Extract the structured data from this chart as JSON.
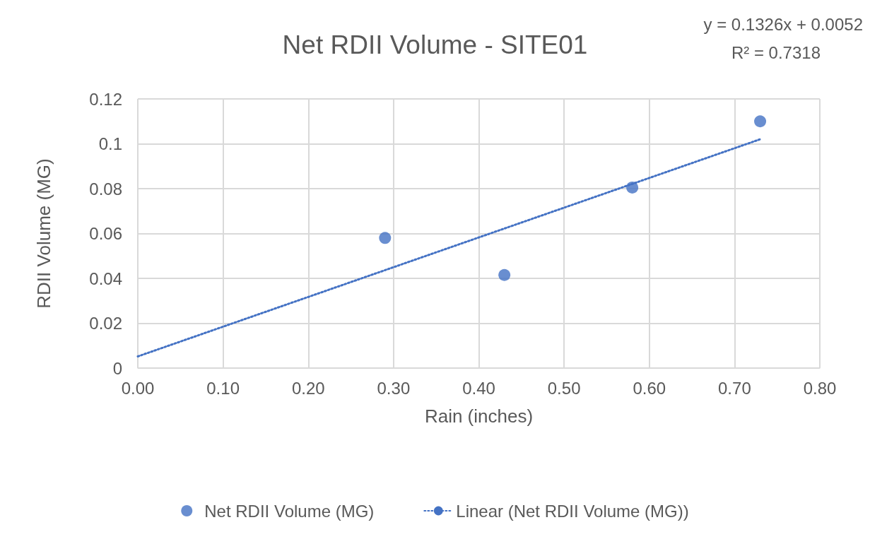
{
  "chart_data": {
    "type": "scatter",
    "title": "Net RDII Volume - SITE01",
    "xlabel": "Rain (inches)",
    "ylabel": "RDII Volume (MG)",
    "annotations": [
      "y = 0.1326x + 0.0052",
      "R² = 0.7318"
    ],
    "x": [
      0.29,
      0.43,
      0.58,
      0.73
    ],
    "series": [
      {
        "name": "Net RDII Volume (MG)",
        "color": "#4472c4",
        "values": [
          0.058,
          0.0415,
          0.0805,
          0.11
        ],
        "marker": "circle"
      },
      {
        "name": "Linear (Net RDII Volume (MG))",
        "type": "line",
        "color": "#4472c4",
        "x": [
          0,
          0.73
        ],
        "values": [
          0.0052,
          0.102
        ],
        "line_style": "dotted",
        "marker": "none"
      }
    ],
    "xlim": [
      0,
      0.8
    ],
    "xticks": [
      {
        "value": 0,
        "label": "0.00"
      },
      {
        "value": 0.1,
        "label": "0.10"
      },
      {
        "value": 0.2,
        "label": "0.20"
      },
      {
        "value": 0.3,
        "label": "0.30"
      },
      {
        "value": 0.4,
        "label": "0.40"
      },
      {
        "value": 0.5,
        "label": "0.50"
      },
      {
        "value": 0.6,
        "label": "0.60"
      },
      {
        "value": 0.7,
        "label": "0.70"
      },
      {
        "value": 0.8,
        "label": "0.80"
      }
    ],
    "ylim": [
      0,
      0.12
    ],
    "yticks": [
      0,
      0.02,
      0.04,
      0.06,
      0.08,
      0.1,
      0.12
    ],
    "grid": true,
    "legend": "bottom"
  }
}
